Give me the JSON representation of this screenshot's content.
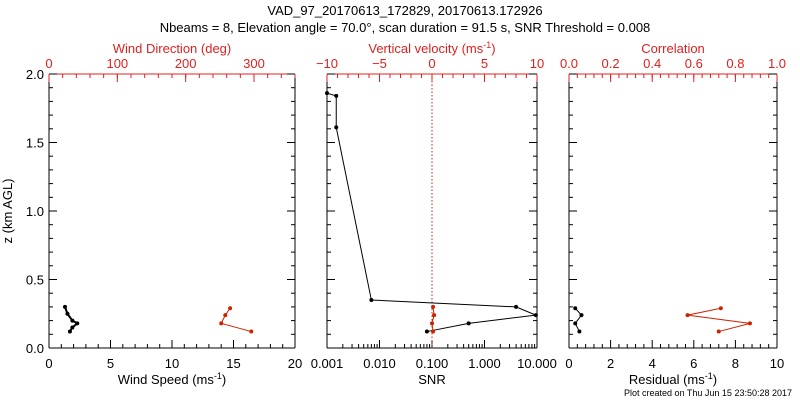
{
  "header": {
    "title_line1": "VAD_97_20170613_172829, 20170613.172926",
    "title_line2": "Nbeams = 8, Elevation angle = 70.0°, scan duration = 91.5 s, SNR Threshold = 0.008"
  },
  "footer": {
    "created": "Plot created on Thu Jun 15 23:50:28 2017"
  },
  "colors": {
    "black": "#000000",
    "red": "#cc2200",
    "axis_red": "#e02020"
  },
  "chart_data": [
    {
      "type": "line",
      "panel": "left",
      "ylabel": "z (km AGL)",
      "ylim": [
        0,
        2
      ],
      "y_ticks": [
        "0.0",
        "0.5",
        "1.0",
        "1.5",
        "2.0"
      ],
      "xlabel": "Wind Speed (ms",
      "xlabel_sup": "-1",
      "xlabel_end": ")",
      "xlim": [
        0,
        20
      ],
      "x_ticks": [
        "0",
        "5",
        "10",
        "15",
        "20"
      ],
      "top_label": "Wind Direction (deg)",
      "top_lim": [
        0,
        360
      ],
      "top_ticks": [
        "0",
        "100",
        "200",
        "300"
      ],
      "series": [
        {
          "name": "Wind Speed",
          "axis": "bottom",
          "color": "black",
          "points": [
            [
              1.3,
              0.3
            ],
            [
              1.5,
              0.25
            ],
            [
              1.9,
              0.2
            ],
            [
              2.3,
              0.18
            ],
            [
              1.9,
              0.15
            ],
            [
              1.7,
              0.12
            ]
          ]
        },
        {
          "name": "Wind Direction",
          "axis": "top",
          "color": "red",
          "points": [
            [
              265,
              0.29
            ],
            [
              258,
              0.24
            ],
            [
              252,
              0.18
            ],
            [
              296,
              0.12
            ]
          ]
        }
      ]
    },
    {
      "type": "line",
      "panel": "middle",
      "ylim": [
        0,
        2
      ],
      "xlabel": "SNR",
      "xscale": "log",
      "xlim": [
        0.001,
        10
      ],
      "x_ticks": [
        "0.001",
        "0.010",
        "0.100",
        "1.000",
        "10.000"
      ],
      "top_label": "Vertical velocity (ms",
      "top_label_sup": "-1",
      "top_label_end": ")",
      "top_lim": [
        -10,
        10
      ],
      "top_ticks": [
        "−10",
        "−5",
        "0",
        "5",
        "10"
      ],
      "top_zero_line": 0,
      "series": [
        {
          "name": "SNR",
          "axis": "bottom",
          "color": "black",
          "points": [
            [
              0.001,
              1.86
            ],
            [
              0.0015,
              1.84
            ],
            [
              0.0015,
              1.61
            ],
            [
              0.007,
              0.35
            ],
            [
              4.0,
              0.3
            ],
            [
              9.5,
              0.24
            ],
            [
              0.5,
              0.18
            ],
            [
              0.08,
              0.12
            ]
          ]
        },
        {
          "name": "Vertical velocity",
          "axis": "top",
          "color": "red",
          "points": [
            [
              0.1,
              0.3
            ],
            [
              0.2,
              0.24
            ],
            [
              0.0,
              0.18
            ],
            [
              0.1,
              0.12
            ]
          ]
        }
      ]
    },
    {
      "type": "line",
      "panel": "right",
      "ylim": [
        0,
        2
      ],
      "xlabel": "Residual (ms",
      "xlabel_sup": "-1",
      "xlabel_end": ")",
      "xlim": [
        0,
        10
      ],
      "x_ticks": [
        "0",
        "2",
        "4",
        "6",
        "8",
        "10"
      ],
      "top_label": "Correlation",
      "top_lim": [
        0,
        1
      ],
      "top_ticks": [
        "0.0",
        "0.2",
        "0.4",
        "0.6",
        "0.8",
        "1.0"
      ],
      "series": [
        {
          "name": "Residual",
          "axis": "bottom",
          "color": "black",
          "points": [
            [
              0.3,
              0.29
            ],
            [
              0.6,
              0.24
            ],
            [
              0.3,
              0.18
            ],
            [
              0.5,
              0.12
            ]
          ]
        },
        {
          "name": "Correlation",
          "axis": "top",
          "color": "red",
          "points": [
            [
              0.73,
              0.29
            ],
            [
              0.57,
              0.24
            ],
            [
              0.87,
              0.18
            ],
            [
              0.72,
              0.12
            ]
          ]
        }
      ]
    }
  ]
}
